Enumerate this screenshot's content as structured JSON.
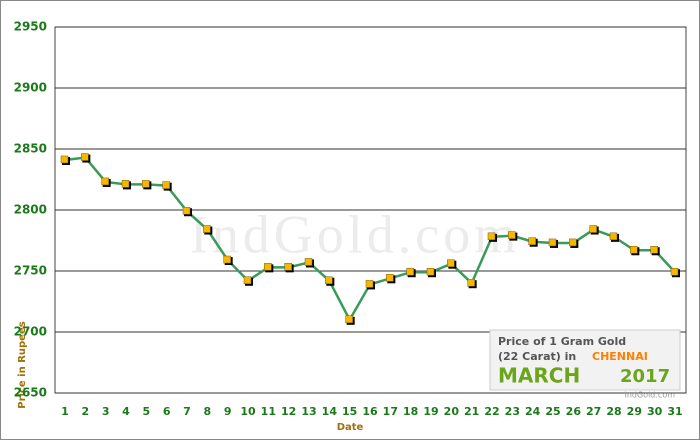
{
  "chart_data": {
    "type": "line",
    "y_label": "Price in Rupees",
    "x_label": "Date",
    "watermark": "IndGold.com",
    "legend_lines": [
      "Price of 1 Gram Gold",
      "(22 Carat) in",
      "CHENNAI",
      "MARCH",
      "2017",
      "IndGold.com"
    ],
    "categories": [
      "1",
      "2",
      "3",
      "4",
      "5",
      "6",
      "7",
      "8",
      "9",
      "10",
      "11",
      "12",
      "13",
      "14",
      "15",
      "16",
      "17",
      "18",
      "19",
      "20",
      "21",
      "22",
      "23",
      "24",
      "25",
      "26",
      "27",
      "28",
      "29",
      "30",
      "31"
    ],
    "series": [
      {
        "name": "Price",
        "color": "#3a9a5a",
        "marker_color": "#f5b800",
        "values": [
          2841,
          2843,
          2823,
          2821,
          2821,
          2820,
          2799,
          2784,
          2759,
          2742,
          2753,
          2753,
          2757,
          2742,
          2710,
          2739,
          2744,
          2749,
          2749,
          2756,
          2740,
          2778,
          2779,
          2774,
          2773,
          2773,
          2784,
          2778,
          2767,
          2767,
          2749
        ]
      }
    ],
    "ylim": [
      2650,
      2950
    ],
    "yticks": [
      2650,
      2700,
      2750,
      2800,
      2850,
      2900,
      2950
    ],
    "grid": true
  }
}
